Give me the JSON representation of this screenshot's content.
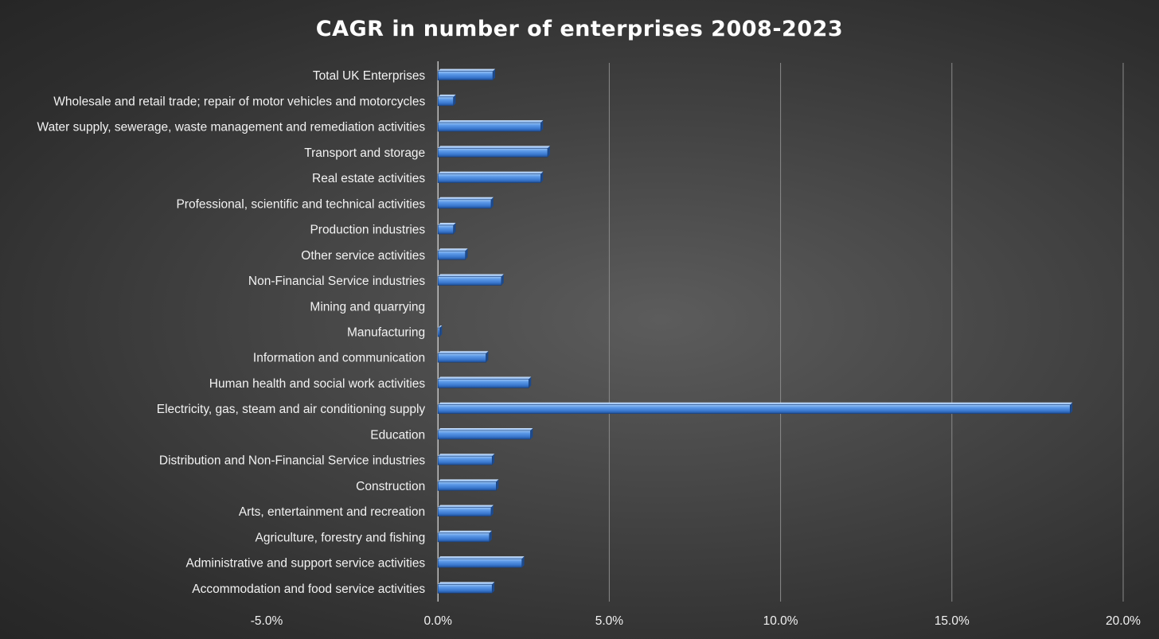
{
  "chart_data": {
    "type": "bar",
    "orientation": "horizontal",
    "title": "CAGR in number of enterprises 2008-2023",
    "xlabel": "",
    "ylabel": "",
    "xlim": [
      -0.05,
      0.2
    ],
    "x_ticks": [
      -0.05,
      0.0,
      0.05,
      0.1,
      0.15,
      0.2
    ],
    "x_tick_labels": [
      "-5.0%",
      "0.0%",
      "5.0%",
      "10.0%",
      "15.0%",
      "20.0%"
    ],
    "grid": true,
    "legend": "none",
    "categories": [
      "Total UK Enterprises",
      "Wholesale and retail trade; repair of motor vehicles and motorcycles",
      "Water supply, sewerage, waste management and remediation activities",
      "Transport and storage",
      "Real estate activities",
      "Professional, scientific and technical activities",
      "Production industries",
      "Other service activities",
      "Non-Financial Service industries",
      "Mining and quarrying",
      "Manufacturing",
      "Information and communication",
      "Human health and social work activities",
      "Electricity, gas, steam and air conditioning supply",
      "Education",
      "Distribution and Non-Financial Service industries",
      "Construction",
      "Arts, entertainment and recreation",
      "Agriculture, forestry and fishing",
      "Administrative and support service activities",
      "Accommodation and food service activities"
    ],
    "values": [
      0.016,
      0.0045,
      0.03,
      0.032,
      0.03,
      0.0155,
      0.0045,
      0.008,
      0.0185,
      0.0,
      0.0005,
      0.014,
      0.0265,
      0.1845,
      0.027,
      0.0158,
      0.017,
      0.0155,
      0.015,
      0.0245,
      0.0158
    ],
    "bar_color": "#4a8fe2"
  }
}
